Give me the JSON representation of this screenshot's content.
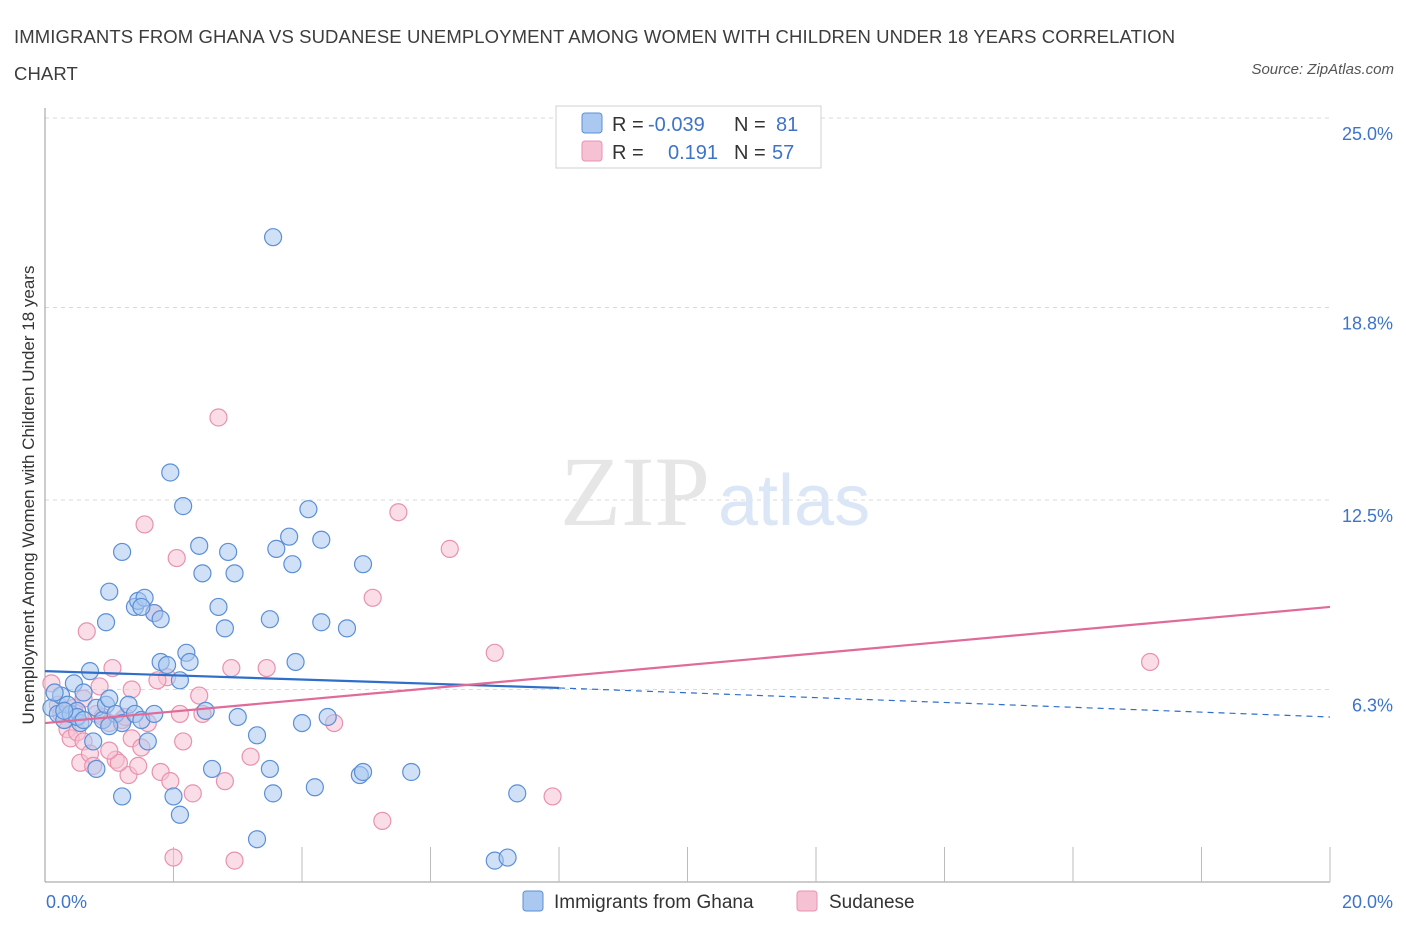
{
  "title": "IMMIGRANTS FROM GHANA VS SUDANESE UNEMPLOYMENT AMONG WOMEN WITH CHILDREN UNDER 18 YEARS CORRELATION CHART",
  "source": "Source: ZipAtlas.com",
  "watermark": {
    "zip": "ZIP",
    "atlas": "atlas"
  },
  "colors": {
    "ghana_fill": "#aac8f0",
    "ghana_stroke": "#5b8fd6",
    "ghana_line": "#2f6fc9",
    "sudanese_fill": "#f6c1d2",
    "sudanese_stroke": "#e892b0",
    "sudanese_line": "#e06a98",
    "tick_label": "#3d74c9",
    "grid": "#d9d9d9"
  },
  "stats": {
    "ghana": {
      "r_label": "R =",
      "r": "-0.039",
      "n_label": "N =",
      "n": "81"
    },
    "sudanese": {
      "r_label": "R =",
      "r": "0.191",
      "n_label": "N =",
      "n": "57"
    }
  },
  "chart_data": {
    "type": "scatter",
    "title": "IMMIGRANTS FROM GHANA VS SUDANESE UNEMPLOYMENT AMONG WOMEN WITH CHILDREN UNDER 18 YEARS CORRELATION CHART",
    "xlabel": "",
    "ylabel": "Unemployment Among Women with Children Under 18 years",
    "xlim": [
      0,
      20
    ],
    "ylim": [
      0,
      25
    ],
    "x_tick_labels": [
      "0.0%",
      "20.0%"
    ],
    "y_ticks": [
      6.3,
      12.5,
      18.8,
      25.0
    ],
    "y_tick_labels": [
      "6.3%",
      "12.5%",
      "18.8%",
      "25.0%"
    ],
    "grid": true,
    "legend_position": "bottom",
    "series": [
      {
        "name": "Immigrants from Ghana",
        "trend": {
          "x0": 0,
          "y0": 6.9,
          "x1": 8.0,
          "y1": 6.35,
          "dashed_to_x": 20,
          "dashed_to_y": 5.4
        },
        "points": [
          [
            0.1,
            5.7
          ],
          [
            0.2,
            5.5
          ],
          [
            0.25,
            6.1
          ],
          [
            0.3,
            5.3
          ],
          [
            0.35,
            5.8
          ],
          [
            0.4,
            5.5
          ],
          [
            0.45,
            6.5
          ],
          [
            0.5,
            5.6
          ],
          [
            0.55,
            5.2
          ],
          [
            0.6,
            6.2
          ],
          [
            0.7,
            6.9
          ],
          [
            0.75,
            4.6
          ],
          [
            0.8,
            5.7
          ],
          [
            0.9,
            5.3
          ],
          [
            0.95,
            5.8
          ],
          [
            1.0,
            6.0
          ],
          [
            1.1,
            5.5
          ],
          [
            1.2,
            5.2
          ],
          [
            1.3,
            5.8
          ],
          [
            1.4,
            5.5
          ],
          [
            1.5,
            5.3
          ],
          [
            1.6,
            4.6
          ],
          [
            1.7,
            5.5
          ],
          [
            0.95,
            8.5
          ],
          [
            1.0,
            9.5
          ],
          [
            1.2,
            10.8
          ],
          [
            1.4,
            9.0
          ],
          [
            1.45,
            9.2
          ],
          [
            1.55,
            9.3
          ],
          [
            1.7,
            8.8
          ],
          [
            1.8,
            8.6
          ],
          [
            1.8,
            7.2
          ],
          [
            1.9,
            7.1
          ],
          [
            1.95,
            13.4
          ],
          [
            2.1,
            6.6
          ],
          [
            2.15,
            12.3
          ],
          [
            2.2,
            7.5
          ],
          [
            2.25,
            7.2
          ],
          [
            2.4,
            11.0
          ],
          [
            2.45,
            10.1
          ],
          [
            2.5,
            5.6
          ],
          [
            2.7,
            9.0
          ],
          [
            2.8,
            8.3
          ],
          [
            2.85,
            10.8
          ],
          [
            2.95,
            10.1
          ],
          [
            3.0,
            5.4
          ],
          [
            3.3,
            4.8
          ],
          [
            3.5,
            3.7
          ],
          [
            3.5,
            8.6
          ],
          [
            3.55,
            2.9
          ],
          [
            3.6,
            10.9
          ],
          [
            3.8,
            11.3
          ],
          [
            3.85,
            10.4
          ],
          [
            3.9,
            7.2
          ],
          [
            4.0,
            5.2
          ],
          [
            4.1,
            12.2
          ],
          [
            4.2,
            3.1
          ],
          [
            4.3,
            11.2
          ],
          [
            4.3,
            8.5
          ],
          [
            4.4,
            5.4
          ],
          [
            4.7,
            8.3
          ],
          [
            4.9,
            3.5
          ],
          [
            4.95,
            3.6
          ],
          [
            4.95,
            10.4
          ],
          [
            5.7,
            3.6
          ],
          [
            7.0,
            0.7
          ],
          [
            7.2,
            0.8
          ],
          [
            7.35,
            2.9
          ],
          [
            3.55,
            21.1
          ],
          [
            0.8,
            3.7
          ],
          [
            1.2,
            2.8
          ],
          [
            2.0,
            2.8
          ],
          [
            2.1,
            2.2
          ],
          [
            3.3,
            1.4
          ],
          [
            0.5,
            5.4
          ],
          [
            1.0,
            5.1
          ],
          [
            1.5,
            9.0
          ],
          [
            2.6,
            3.7
          ],
          [
            0.3,
            5.6
          ],
          [
            0.15,
            6.2
          ],
          [
            0.6,
            5.3
          ]
        ]
      },
      {
        "name": "Sudanese",
        "trend": {
          "x0": 0,
          "y0": 5.2,
          "x1": 20,
          "y1": 9.0
        },
        "points": [
          [
            0.1,
            6.5
          ],
          [
            0.2,
            5.8
          ],
          [
            0.3,
            5.3
          ],
          [
            0.35,
            5.0
          ],
          [
            0.4,
            4.7
          ],
          [
            0.5,
            4.9
          ],
          [
            0.55,
            3.9
          ],
          [
            0.6,
            4.6
          ],
          [
            0.65,
            8.2
          ],
          [
            0.7,
            4.2
          ],
          [
            0.75,
            3.8
          ],
          [
            0.8,
            5.5
          ],
          [
            0.9,
            5.4
          ],
          [
            1.0,
            5.2
          ],
          [
            1.05,
            7.0
          ],
          [
            1.1,
            4.0
          ],
          [
            1.2,
            5.3
          ],
          [
            1.25,
            5.4
          ],
          [
            1.3,
            3.5
          ],
          [
            1.35,
            4.7
          ],
          [
            1.35,
            6.3
          ],
          [
            1.45,
            3.8
          ],
          [
            1.5,
            4.4
          ],
          [
            1.55,
            11.7
          ],
          [
            1.6,
            5.2
          ],
          [
            1.7,
            8.8
          ],
          [
            1.8,
            3.6
          ],
          [
            1.9,
            6.7
          ],
          [
            1.95,
            3.3
          ],
          [
            2.0,
            0.8
          ],
          [
            2.05,
            10.6
          ],
          [
            2.1,
            5.5
          ],
          [
            2.15,
            4.6
          ],
          [
            2.3,
            2.9
          ],
          [
            2.4,
            6.1
          ],
          [
            2.45,
            5.5
          ],
          [
            2.7,
            15.2
          ],
          [
            2.8,
            3.3
          ],
          [
            2.9,
            7.0
          ],
          [
            2.95,
            0.7
          ],
          [
            3.2,
            4.1
          ],
          [
            3.45,
            7.0
          ],
          [
            4.5,
            5.2
          ],
          [
            5.1,
            9.3
          ],
          [
            5.25,
            2.0
          ],
          [
            5.5,
            12.1
          ],
          [
            6.3,
            10.9
          ],
          [
            7.0,
            7.5
          ],
          [
            7.9,
            2.8
          ],
          [
            17.2,
            7.2
          ],
          [
            0.45,
            5.7
          ],
          [
            0.85,
            6.4
          ],
          [
            1.15,
            3.9
          ],
          [
            0.25,
            5.5
          ],
          [
            1.75,
            6.6
          ],
          [
            1.0,
            4.3
          ],
          [
            0.6,
            6.0
          ]
        ]
      }
    ]
  },
  "legend": {
    "ghana": "Immigrants from Ghana",
    "sudanese": "Sudanese"
  }
}
